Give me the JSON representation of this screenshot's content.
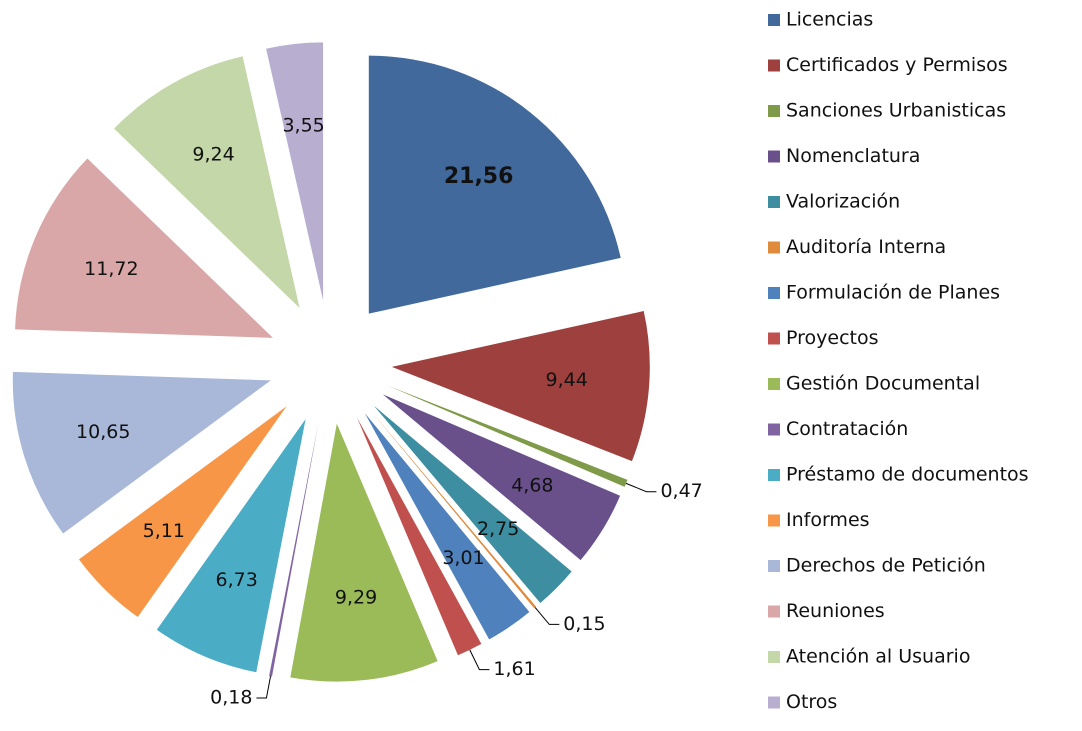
{
  "chart_data": {
    "type": "pie",
    "legend": "right",
    "categories": [
      "Licencias",
      "Certificados y Permisos",
      "Sanciones Urbanisticas",
      "Nomenclatura",
      "Valorización",
      "Auditoría Interna",
      "Formulación de Planes",
      "Proyectos",
      "Gestión Documental",
      "Contratación",
      "Préstamo de documentos",
      "Informes",
      "Derechos de Petición",
      "Reuniones",
      "Atención al Usuario",
      "Otros"
    ],
    "values": [
      21.56,
      9.44,
      0.47,
      4.68,
      2.75,
      0.15,
      3.01,
      1.61,
      9.29,
      0.18,
      6.73,
      5.11,
      10.65,
      11.72,
      9.24,
      3.55
    ],
    "value_labels": [
      "21,56",
      "9,44",
      "0,47",
      "4,68",
      "2,75",
      "0,15",
      "3,01",
      "1,61",
      "9,29",
      "0,18",
      "6,73",
      "5,11",
      "10,65",
      "11,72",
      "9,24",
      "3,55"
    ],
    "colors": [
      "#41699b",
      "#9e413e",
      "#7f9a48",
      "#69508b",
      "#3d8ea0",
      "#e08a3c",
      "#4f81bd",
      "#c0504d",
      "#9bbb59",
      "#8064a2",
      "#4bacc6",
      "#f79646",
      "#a9b8d8",
      "#d9a7a7",
      "#c4d7a8",
      "#b8aed0"
    ]
  }
}
